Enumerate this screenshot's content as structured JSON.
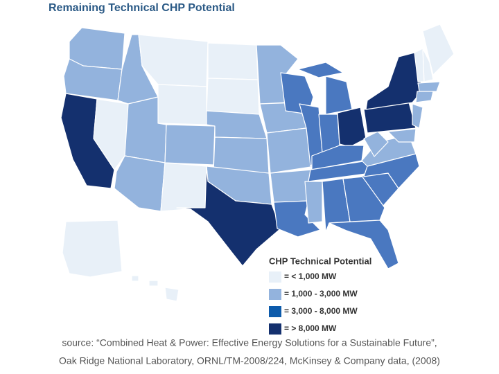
{
  "title": "Remaining Technical CHP Potential",
  "legend": {
    "title": "CHP Technical Potential",
    "items": [
      {
        "label": "= < 1,000 MW",
        "color": "#e8f0f8"
      },
      {
        "label": "= 1,000 - 3,000 MW",
        "color": "#93b3dd"
      },
      {
        "label": "= 3,000 - 8,000 MW",
        "color": "#0d5bab"
      },
      {
        "label": "= > 8,000 MW",
        "color": "#14306e"
      }
    ]
  },
  "source": [
    "source: “Combined Heat & Power: Effective Energy Solutions for a Sustainable Future”,",
    "Oak Ridge National Laboratory, ORNL/TM-2008/224, McKinsey & Company data, (2008)"
  ]
}
